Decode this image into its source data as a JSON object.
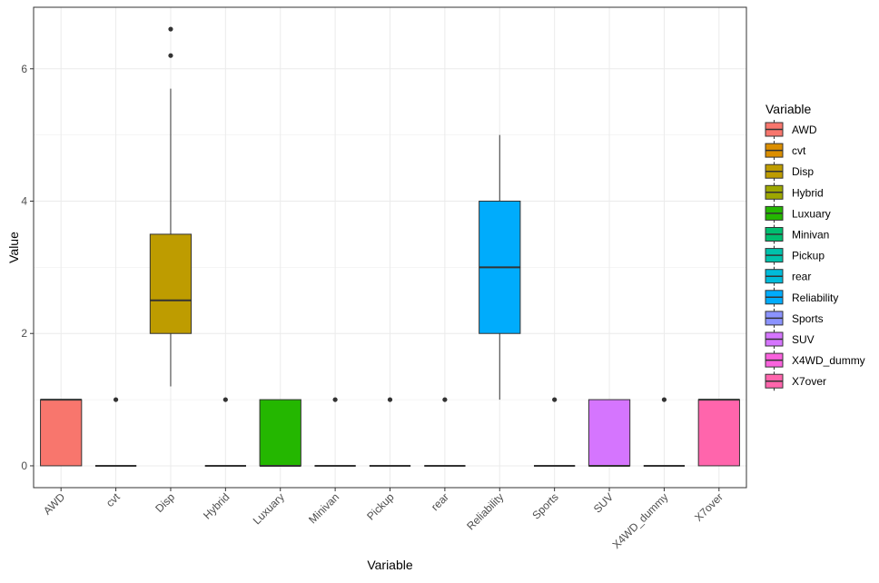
{
  "chart_data": {
    "type": "boxplot",
    "title": "",
    "xlabel": "Variable",
    "ylabel": "Value",
    "ylim": [
      -0.33,
      6.93
    ],
    "yticks": [
      0,
      2,
      4,
      6
    ],
    "ytick_labels": [
      "0",
      "2",
      "4",
      "6"
    ],
    "categories": [
      "AWD",
      "cvt",
      "Disp",
      "Hybrid",
      "Luxuary",
      "Minivan",
      "Pickup",
      "rear",
      "Reliability",
      "Sports",
      "SUV",
      "X4WD_dummy",
      "X7over"
    ],
    "colors": [
      "#F8766D",
      "#DB8E00",
      "#BE9C00",
      "#9DA700",
      "#24B700",
      "#00BE70",
      "#00C1AB",
      "#00BBDA",
      "#00ACFC",
      "#8B93FF",
      "#D575FE",
      "#F962DD",
      "#FF65AC"
    ],
    "boxes": [
      {
        "name": "AWD",
        "q1": 0,
        "median": 1,
        "q3": 1,
        "whisker_low": 0,
        "whisker_high": 1,
        "outliers": []
      },
      {
        "name": "cvt",
        "q1": 0,
        "median": 0,
        "q3": 0,
        "whisker_low": 0,
        "whisker_high": 0,
        "outliers": [
          1
        ]
      },
      {
        "name": "Disp",
        "q1": 2.0,
        "median": 2.5,
        "q3": 3.5,
        "whisker_low": 1.2,
        "whisker_high": 5.7,
        "outliers": [
          6.2,
          6.6
        ]
      },
      {
        "name": "Hybrid",
        "q1": 0,
        "median": 0,
        "q3": 0,
        "whisker_low": 0,
        "whisker_high": 0,
        "outliers": [
          1
        ]
      },
      {
        "name": "Luxuary",
        "q1": 0,
        "median": 0,
        "q3": 1,
        "whisker_low": 0,
        "whisker_high": 1,
        "outliers": []
      },
      {
        "name": "Minivan",
        "q1": 0,
        "median": 0,
        "q3": 0,
        "whisker_low": 0,
        "whisker_high": 0,
        "outliers": [
          1
        ]
      },
      {
        "name": "Pickup",
        "q1": 0,
        "median": 0,
        "q3": 0,
        "whisker_low": 0,
        "whisker_high": 0,
        "outliers": [
          1
        ]
      },
      {
        "name": "rear",
        "q1": 0,
        "median": 0,
        "q3": 0,
        "whisker_low": 0,
        "whisker_high": 0,
        "outliers": [
          1
        ]
      },
      {
        "name": "Reliability",
        "q1": 2,
        "median": 3,
        "q3": 4,
        "whisker_low": 1,
        "whisker_high": 5,
        "outliers": []
      },
      {
        "name": "Sports",
        "q1": 0,
        "median": 0,
        "q3": 0,
        "whisker_low": 0,
        "whisker_high": 0,
        "outliers": [
          1
        ]
      },
      {
        "name": "SUV",
        "q1": 0,
        "median": 0,
        "q3": 1,
        "whisker_low": 0,
        "whisker_high": 1,
        "outliers": []
      },
      {
        "name": "X4WD_dummy",
        "q1": 0,
        "median": 0,
        "q3": 0,
        "whisker_low": 0,
        "whisker_high": 0,
        "outliers": [
          1
        ]
      },
      {
        "name": "X7over",
        "q1": 0,
        "median": 1,
        "q3": 1,
        "whisker_low": 0,
        "whisker_high": 1,
        "outliers": []
      }
    ],
    "legend": {
      "title": "Variable",
      "position": "right"
    },
    "grid": true
  }
}
